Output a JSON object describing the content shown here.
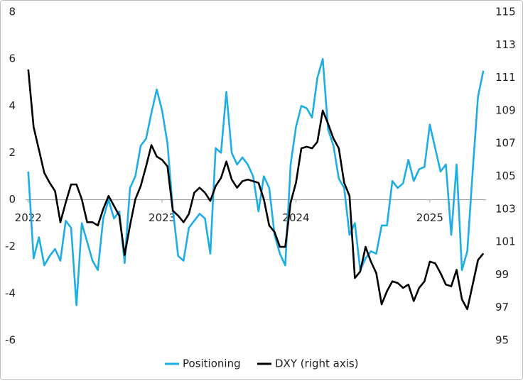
{
  "chart_data": {
    "type": "line",
    "x": [
      2022,
      2022.04,
      2022.08,
      2022.12,
      2022.16,
      2022.2,
      2022.24,
      2022.28,
      2022.32,
      2022.36,
      2022.4,
      2022.44,
      2022.48,
      2022.52,
      2022.56,
      2022.6,
      2022.64,
      2022.68,
      2022.72,
      2022.76,
      2022.8,
      2022.84,
      2022.88,
      2022.92,
      2022.96,
      2023,
      2023.04,
      2023.08,
      2023.12,
      2023.16,
      2023.2,
      2023.24,
      2023.28,
      2023.32,
      2023.36,
      2023.4,
      2023.44,
      2023.48,
      2023.52,
      2023.56,
      2023.6,
      2023.64,
      2023.68,
      2023.72,
      2023.76,
      2023.8,
      2023.84,
      2023.88,
      2023.92,
      2023.96,
      2024,
      2024.04,
      2024.08,
      2024.12,
      2024.16,
      2024.2,
      2024.24,
      2024.28,
      2024.32,
      2024.36,
      2024.4,
      2024.44,
      2024.48,
      2024.52,
      2024.56,
      2024.6,
      2024.64,
      2024.68,
      2024.72,
      2024.76,
      2024.8,
      2024.84,
      2024.88,
      2024.92,
      2024.96,
      2025,
      2025.04,
      2025.08,
      2025.12,
      2025.16,
      2025.2,
      2025.24,
      2025.28,
      2025.32,
      2025.36,
      2025.4
    ],
    "xlim": [
      2021.98,
      2025.42
    ],
    "xticks": [
      2022,
      2023,
      2024,
      2025
    ],
    "ylim": [
      -6,
      8
    ],
    "yticks": [
      -6,
      -4,
      -2,
      0,
      2,
      4,
      6,
      8
    ],
    "y2lim": [
      95,
      115
    ],
    "y2ticks": [
      95,
      97,
      99,
      101,
      103,
      105,
      107,
      109,
      111,
      113,
      115
    ],
    "legend": "bottom",
    "series": [
      {
        "name": "Positioning",
        "color": "#1eaee4",
        "values": [
          1.2,
          -2.5,
          -1.6,
          -2.8,
          -2.4,
          -2.1,
          -2.6,
          -0.9,
          -1.2,
          -4.5,
          -1.0,
          -1.8,
          -2.6,
          -3.0,
          -0.8,
          0.0,
          -0.8,
          -0.5,
          -2.7,
          0.5,
          1.0,
          2.3,
          2.6,
          3.7,
          4.7,
          3.8,
          2.4,
          -0.4,
          -2.4,
          -2.6,
          -1.2,
          -0.9,
          -0.6,
          -0.8,
          -2.3,
          2.2,
          2.0,
          4.6,
          2.0,
          1.5,
          1.8,
          1.5,
          1.0,
          -0.5,
          1.0,
          0.5,
          -1.5,
          -2.3,
          -2.8,
          1.5,
          3.1,
          4.0,
          3.9,
          3.5,
          5.2,
          6.0,
          3.0,
          2.3,
          0.9,
          0.5,
          -1.5,
          -1.0,
          -3.0,
          -2.5,
          -2.2,
          -2.3,
          -1.1,
          -1.1,
          0.8,
          0.5,
          0.7,
          1.7,
          0.8,
          1.3,
          1.4,
          3.2,
          2.2,
          1.2,
          1.5,
          -1.5,
          1.5,
          -3.0,
          -2.2,
          1.2,
          4.4,
          5.5
        ]
      },
      {
        "name": "DXY (right axis)",
        "color": "#000000",
        "axis": "y2",
        "values": [
          111.5,
          108.0,
          106.6,
          105.2,
          104.6,
          104.1,
          102.2,
          103.4,
          104.5,
          104.5,
          103.6,
          102.2,
          102.2,
          102.0,
          103.0,
          103.8,
          103.2,
          102.6,
          100.2,
          102.0,
          103.6,
          104.4,
          105.6,
          106.9,
          106.2,
          106.0,
          105.6,
          102.9,
          102.6,
          102.2,
          102.7,
          104.0,
          104.3,
          104.0,
          103.5,
          104.4,
          104.9,
          105.9,
          104.8,
          104.3,
          104.7,
          104.8,
          104.7,
          104.6,
          103.6,
          102.0,
          101.6,
          100.7,
          100.7,
          103.4,
          104.6,
          106.7,
          106.8,
          106.7,
          107.1,
          109.0,
          108.2,
          107.3,
          106.7,
          104.6,
          103.8,
          98.8,
          99.2,
          100.7,
          99.8,
          99.1,
          97.2,
          98.0,
          98.6,
          98.5,
          98.2,
          98.4,
          97.4,
          98.2,
          98.6,
          99.8,
          99.7,
          99.1,
          98.4,
          98.3,
          99.3,
          97.5,
          96.9,
          98.4,
          99.9,
          100.3
        ]
      }
    ]
  }
}
